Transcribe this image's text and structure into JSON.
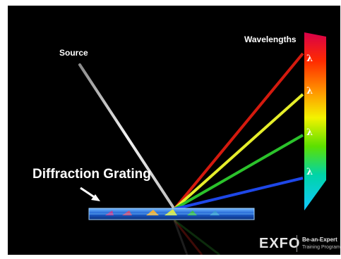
{
  "labels": {
    "source": "Source",
    "wavelengths": "Wavelengths",
    "grating": "Diffraction Grating"
  },
  "lambda_symbol": "λ",
  "branding": {
    "logo": "EXFO",
    "tagline_1": "Be-an-Expert",
    "tagline_2": "Training Program"
  },
  "colors": {
    "background": "#000000",
    "beam_red": "#d41a0e",
    "beam_yellow": "#e6ee2a",
    "beam_green": "#2bc22b",
    "beam_blue": "#1e47e8",
    "source_beam": "#d9d9d9"
  }
}
